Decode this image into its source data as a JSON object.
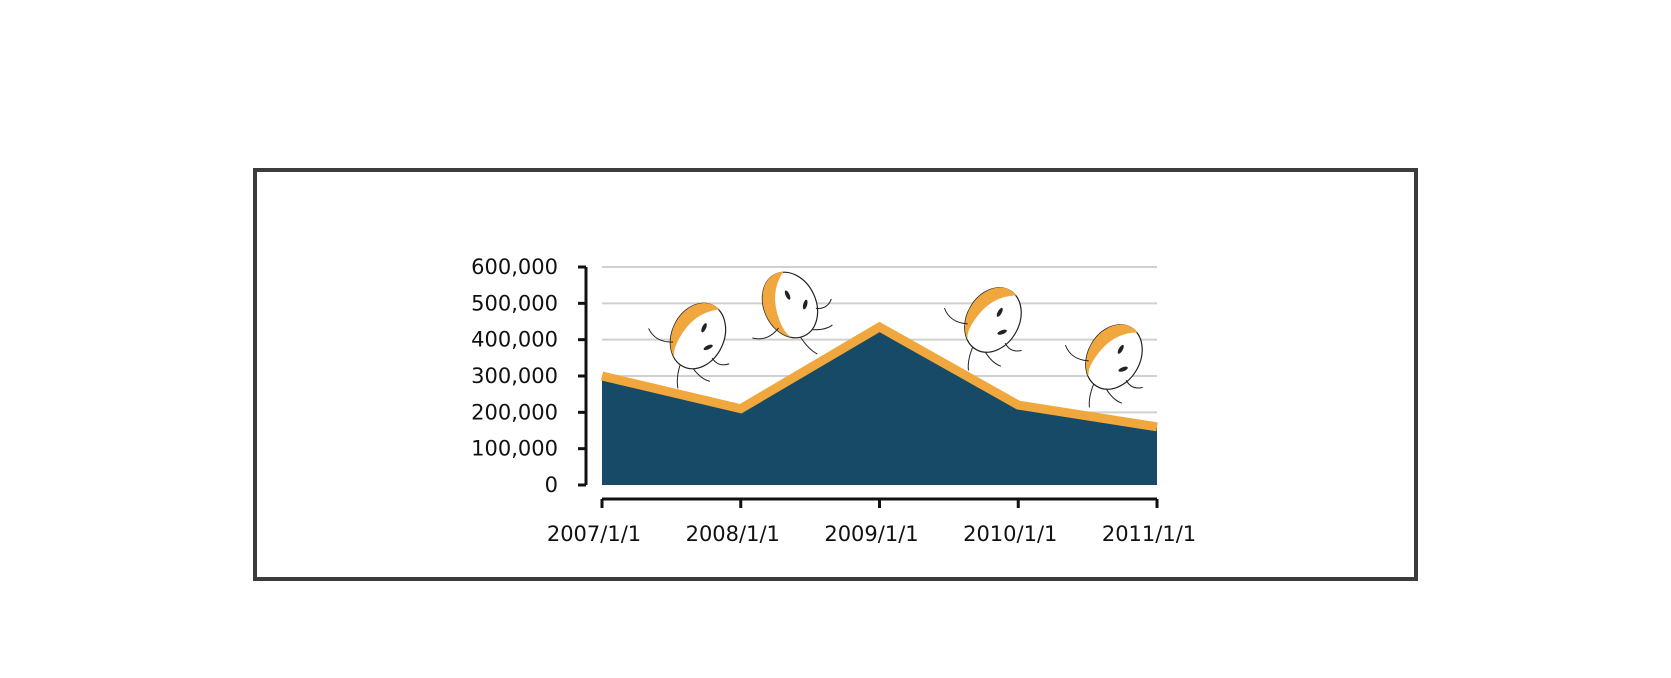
{
  "chart_data": {
    "type": "area",
    "title": "",
    "xlabel": "",
    "ylabel": "",
    "categories": [
      "2007/1/1",
      "2008/1/1",
      "2009/1/1",
      "2010/1/1",
      "2011/1/1"
    ],
    "series": [
      {
        "values": [
          300000,
          210000,
          435000,
          220000,
          160000
        ]
      }
    ],
    "ylim": [
      0,
      600000
    ],
    "yticks": [
      0,
      100000,
      200000,
      300000,
      400000,
      500000,
      600000
    ],
    "ytick_labels": [
      "0",
      "100,000",
      "200,000",
      "300,000",
      "400,000",
      "500,000",
      "600,000"
    ],
    "grid": true,
    "legend": "none",
    "colors": {
      "fill": "#164a66",
      "line": "#f0a83e",
      "grid": "#d0d0d0",
      "axis": "#111111"
    },
    "decorations": [
      "running-egg-character-icon"
    ]
  }
}
